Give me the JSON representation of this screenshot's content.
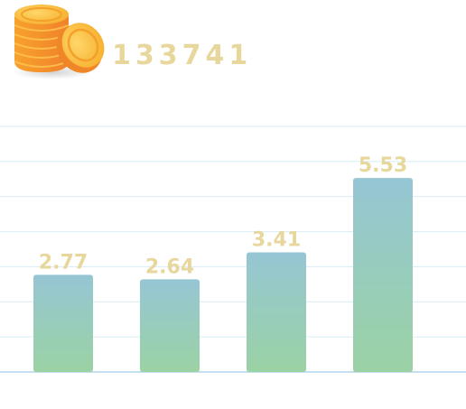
{
  "header": {
    "coin_count": "133741",
    "icon": "coin-stack-icon"
  },
  "colors": {
    "value_label": "#e8d79c",
    "bar_top": "#96c6d4",
    "bar_bottom": "#9ad2a4",
    "grid": "#d8ecf6",
    "baseline": "#c3dff0",
    "coin_gold": "#f9b53a",
    "coin_orange": "#f08a24"
  },
  "chart_data": {
    "type": "bar",
    "categories": [
      "",
      "",
      "",
      ""
    ],
    "values": [
      2.77,
      2.64,
      3.41,
      5.53
    ],
    "value_labels": [
      "2.77",
      "2.64",
      "3.41",
      "5.53"
    ],
    "title": "",
    "xlabel": "",
    "ylabel": "",
    "ylim": [
      0,
      7
    ],
    "grid": true,
    "legend": "none"
  }
}
